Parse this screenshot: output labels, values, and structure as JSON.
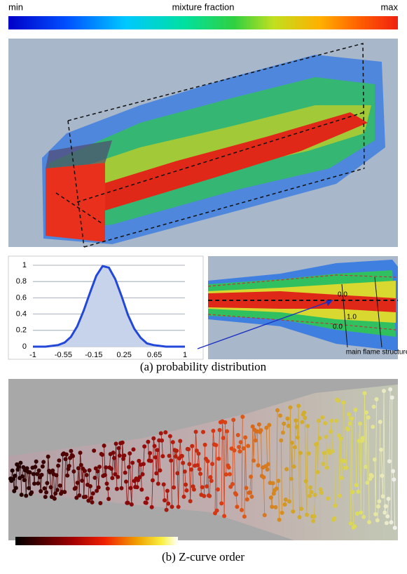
{
  "colorbar": {
    "min_label": "min",
    "title": "mixture fraction",
    "max_label": "max"
  },
  "panel_a": {
    "chart": {
      "type": "area",
      "x_labels": [
        "-1",
        "-0.55",
        "-0.15",
        "0.25",
        "0.65",
        "1"
      ],
      "values": [
        0,
        0,
        0,
        0.01,
        0.02,
        0.05,
        0.12,
        0.25,
        0.44,
        0.66,
        0.87,
        0.99,
        0.97,
        0.83,
        0.62,
        0.39,
        0.22,
        0.11,
        0.04,
        0.02,
        0.01,
        0,
        0,
        0,
        0
      ],
      "ylim": [
        0,
        1
      ],
      "yticks": [
        0,
        0.2,
        0.4,
        0.6,
        0.8,
        1
      ],
      "grid": true,
      "color": "#2347d8"
    },
    "inset": {
      "labels": [
        "0.0",
        "1.0",
        "0.0"
      ],
      "annotation": "main flame structure"
    },
    "caption": "(a) probability distribution"
  },
  "panel_b": {
    "caption": "(b) Z-curve order"
  }
}
